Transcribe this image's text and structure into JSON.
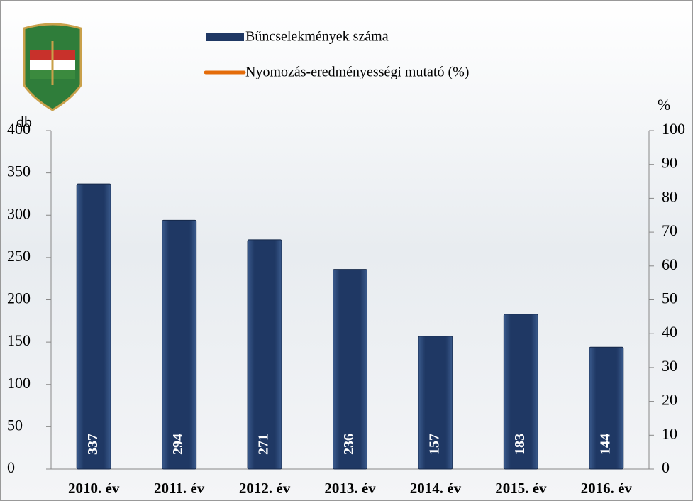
{
  "chart_data": {
    "type": "bar",
    "categories": [
      "2010. év",
      "2011. év",
      "2012. év",
      "2013. év",
      "2014. év",
      "2015. év",
      "2016. év"
    ],
    "series": [
      {
        "name": "Bűncselekmények száma",
        "color": "#1f3864",
        "values": [
          337,
          294,
          271,
          236,
          157,
          183,
          144
        ]
      },
      {
        "name": "Nyomozás-eredményességi mutató (%)",
        "color": "#e46c0a",
        "axis": "y2",
        "values": [
          null,
          null,
          null,
          null,
          null,
          null,
          null
        ]
      }
    ],
    "y_label": "db",
    "y2_label": "%",
    "ylim": [
      0,
      400
    ],
    "yticks": [
      0,
      50,
      100,
      150,
      200,
      250,
      300,
      350,
      400
    ],
    "y2lim": [
      0,
      100
    ],
    "y2ticks": [
      0,
      10,
      20,
      30,
      40,
      50,
      60,
      70,
      80,
      90,
      100
    ]
  }
}
